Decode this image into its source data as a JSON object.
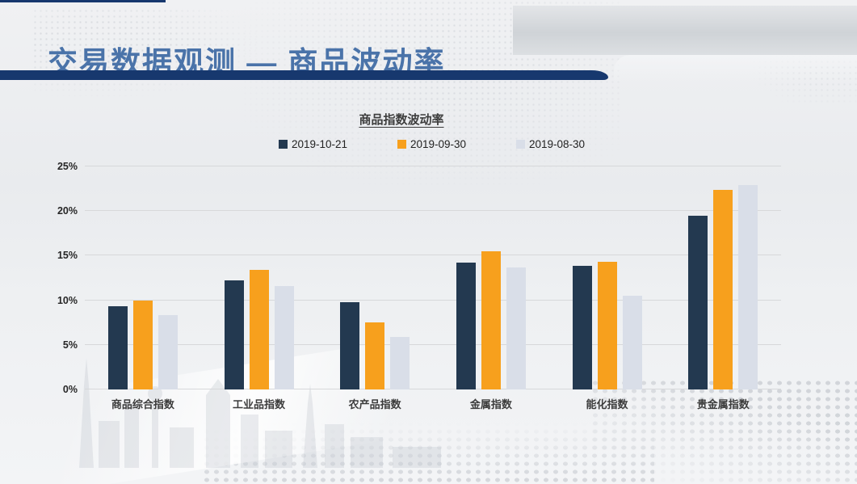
{
  "slide": {
    "title": "交易数据观测 — 商品波动率"
  },
  "colors": {
    "title_blue": "#4a73a9",
    "divider_navy": "#17386e",
    "series_navy": "#233950",
    "series_orange": "#f7a01d",
    "series_light": "#d9dee8",
    "gridline": "#d7d8da",
    "background": "#edeff1"
  },
  "chart_data": {
    "type": "bar",
    "title": "商品指数波动率",
    "categories": [
      "商品综合指数",
      "工业品指数",
      "农产品指数",
      "金属指数",
      "能化指数",
      "贵金属指数"
    ],
    "series": [
      {
        "name": "2019-10-21",
        "color": "#233950",
        "values": [
          9.3,
          12.2,
          9.8,
          14.2,
          13.9,
          19.5
        ]
      },
      {
        "name": "2019-09-30",
        "color": "#f7a01d",
        "values": [
          10.0,
          13.4,
          7.5,
          15.5,
          14.3,
          22.4
        ]
      },
      {
        "name": "2019-08-30",
        "color": "#d9dee8",
        "values": [
          8.3,
          11.6,
          5.9,
          13.7,
          10.5,
          22.9
        ]
      }
    ],
    "xlabel": "",
    "ylabel": "",
    "ylim": [
      0,
      25
    ],
    "ytick_labels": [
      "0%",
      "5%",
      "10%",
      "15%",
      "20%",
      "25%"
    ],
    "grid": true,
    "legend_position": "top"
  }
}
